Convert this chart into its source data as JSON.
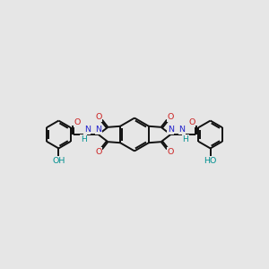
{
  "bg_color": "#e6e6e6",
  "atom_colors": {
    "C": "#000000",
    "N": "#2222cc",
    "O": "#cc2222",
    "H": "#009090"
  },
  "bond_color": "#111111",
  "bond_width": 1.4,
  "figsize": [
    3.0,
    3.0
  ],
  "dpi": 100
}
